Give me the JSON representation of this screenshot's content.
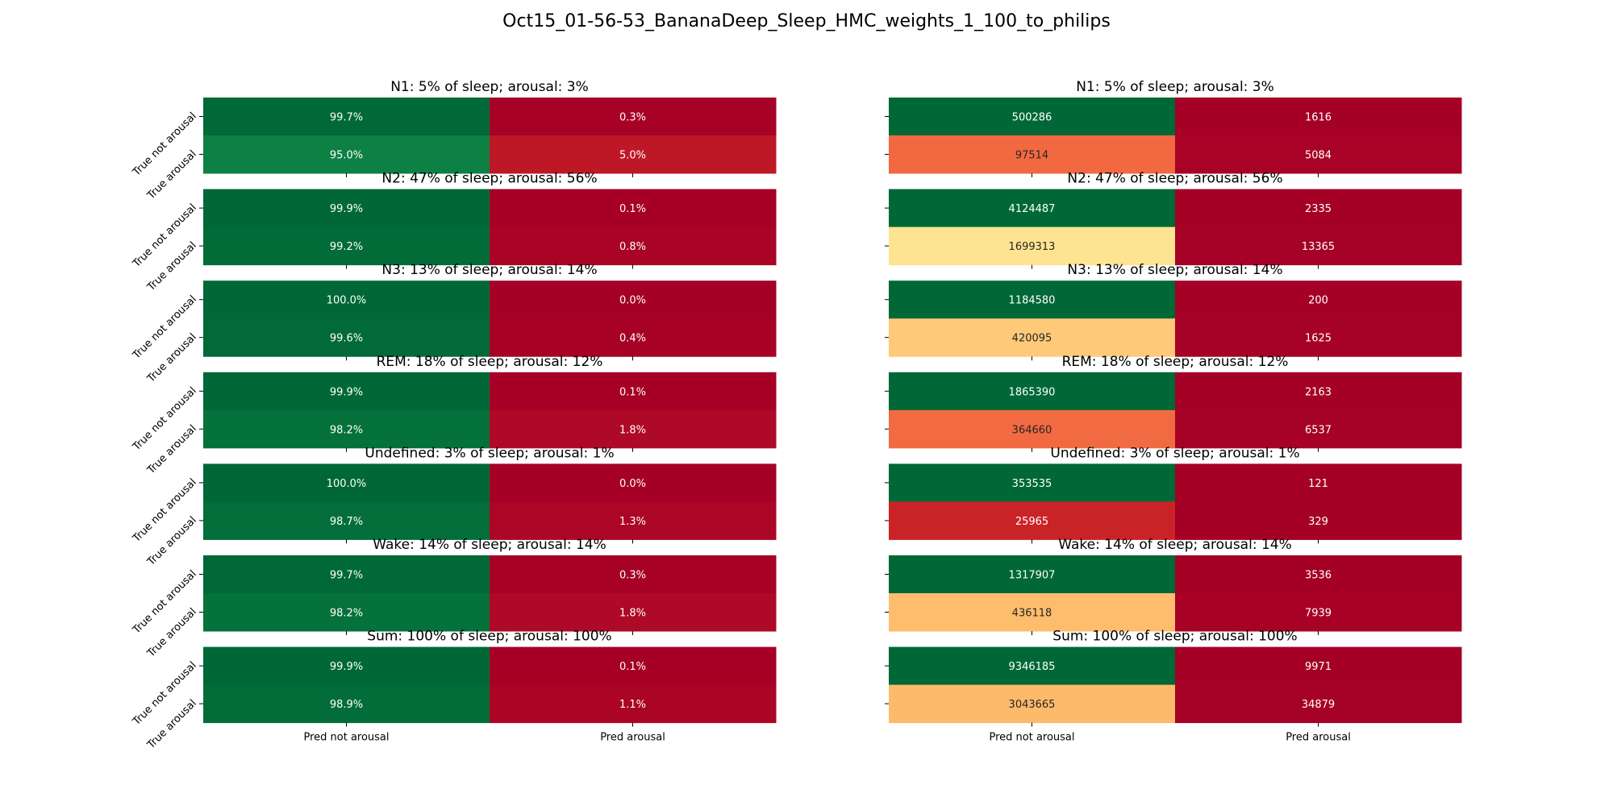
{
  "figure": {
    "title": "Oct15_01-56-53_BananaDeep_Sleep_HMC_weights_1_100_to_philips"
  },
  "chart_data": {
    "type": "heatmap",
    "colormap": "RdYlGn",
    "row_labels": [
      "True not arousal",
      "True arousal"
    ],
    "col_labels": [
      "Pred not arousal",
      "Pred arousal"
    ],
    "panels": [
      {
        "title": "N1: 5% of sleep; arousal: 3%",
        "percent": [
          [
            99.7,
            0.3
          ],
          [
            95.0,
            5.0
          ]
        ],
        "percent_labels": [
          [
            "99.7%",
            "0.3%"
          ],
          [
            "95.0%",
            "5.0%"
          ]
        ],
        "counts": [
          [
            500286,
            1616
          ],
          [
            97514,
            5084
          ]
        ]
      },
      {
        "title": "N2: 47% of sleep; arousal: 56%",
        "percent": [
          [
            99.9,
            0.1
          ],
          [
            99.2,
            0.8
          ]
        ],
        "percent_labels": [
          [
            "99.9%",
            "0.1%"
          ],
          [
            "99.2%",
            "0.8%"
          ]
        ],
        "counts": [
          [
            4124487,
            2335
          ],
          [
            1699313,
            13365
          ]
        ]
      },
      {
        "title": "N3: 13% of sleep; arousal: 14%",
        "percent": [
          [
            100.0,
            0.0
          ],
          [
            99.6,
            0.4
          ]
        ],
        "percent_labels": [
          [
            "100.0%",
            "0.0%"
          ],
          [
            "99.6%",
            "0.4%"
          ]
        ],
        "counts": [
          [
            1184580,
            200
          ],
          [
            420095,
            1625
          ]
        ]
      },
      {
        "title": "REM: 18% of sleep; arousal: 12%",
        "percent": [
          [
            99.9,
            0.1
          ],
          [
            98.2,
            1.8
          ]
        ],
        "percent_labels": [
          [
            "99.9%",
            "0.1%"
          ],
          [
            "98.2%",
            "1.8%"
          ]
        ],
        "counts": [
          [
            1865390,
            2163
          ],
          [
            364660,
            6537
          ]
        ]
      },
      {
        "title": "Undefined: 3% of sleep; arousal: 1%",
        "percent": [
          [
            100.0,
            0.0
          ],
          [
            98.7,
            1.3
          ]
        ],
        "percent_labels": [
          [
            "100.0%",
            "0.0%"
          ],
          [
            "98.7%",
            "1.3%"
          ]
        ],
        "counts": [
          [
            353535,
            121
          ],
          [
            25965,
            329
          ]
        ]
      },
      {
        "title": "Wake: 14% of sleep; arousal: 14%",
        "percent": [
          [
            99.7,
            0.3
          ],
          [
            98.2,
            1.8
          ]
        ],
        "percent_labels": [
          [
            "99.7%",
            "0.3%"
          ],
          [
            "98.2%",
            "1.8%"
          ]
        ],
        "counts": [
          [
            1317907,
            3536
          ],
          [
            436118,
            7939
          ]
        ]
      },
      {
        "title": "Sum: 100% of sleep; arousal: 100%",
        "percent": [
          [
            99.9,
            0.1
          ],
          [
            98.9,
            1.1
          ]
        ],
        "percent_labels": [
          [
            "99.9%",
            "0.1%"
          ],
          [
            "98.9%",
            "1.1%"
          ]
        ],
        "counts": [
          [
            9346185,
            9971
          ],
          [
            3043665,
            34879
          ]
        ]
      }
    ]
  }
}
